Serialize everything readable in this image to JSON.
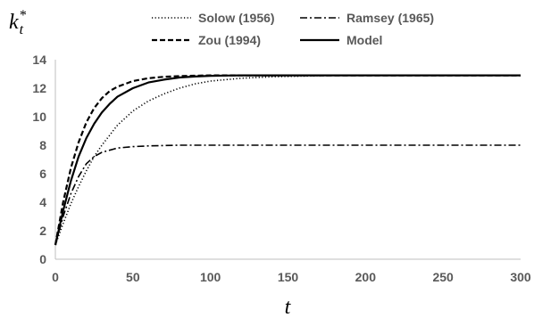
{
  "chart_data": {
    "type": "line",
    "ylabel": {
      "base": "k",
      "sub": "t",
      "sup": "*"
    },
    "xlabel": "t",
    "xlim": [
      0,
      300
    ],
    "ylim": [
      0,
      14
    ],
    "xticks": [
      0,
      50,
      100,
      150,
      200,
      250,
      300
    ],
    "yticks": [
      0,
      2,
      4,
      6,
      8,
      10,
      12,
      14
    ],
    "grid": false,
    "legend_position": "top",
    "series": [
      {
        "name": "Solow (1956)",
        "style": "dotted",
        "color": "#000000",
        "x": [
          0,
          5,
          10,
          15,
          20,
          25,
          30,
          40,
          50,
          60,
          70,
          80,
          90,
          100,
          120,
          140,
          160,
          180,
          200,
          250,
          300
        ],
        "y": [
          1.0,
          2.5,
          3.9,
          5.1,
          6.2,
          7.2,
          8.0,
          9.4,
          10.4,
          11.1,
          11.6,
          12.0,
          12.3,
          12.5,
          12.7,
          12.8,
          12.85,
          12.9,
          12.9,
          12.9,
          12.9
        ]
      },
      {
        "name": "Ramsey (1965)",
        "style": "dash-dot",
        "color": "#000000",
        "x": [
          0,
          5,
          10,
          15,
          20,
          25,
          30,
          40,
          50,
          60,
          80,
          100,
          150,
          200,
          250,
          300
        ],
        "y": [
          1.0,
          3.0,
          4.6,
          5.8,
          6.7,
          7.2,
          7.5,
          7.8,
          7.9,
          7.95,
          8.0,
          8.0,
          8.0,
          8.0,
          8.0,
          8.0
        ]
      },
      {
        "name": "Zou (1994)",
        "style": "dashed",
        "color": "#000000",
        "x": [
          0,
          5,
          10,
          15,
          20,
          25,
          30,
          35,
          40,
          50,
          60,
          70,
          80,
          100,
          120,
          150,
          200,
          250,
          300
        ],
        "y": [
          1.0,
          4.0,
          6.4,
          8.2,
          9.6,
          10.6,
          11.3,
          11.8,
          12.1,
          12.5,
          12.7,
          12.8,
          12.85,
          12.9,
          12.9,
          12.9,
          12.9,
          12.9,
          12.9
        ]
      },
      {
        "name": "Model",
        "style": "solid",
        "color": "#000000",
        "x": [
          0,
          5,
          10,
          15,
          20,
          25,
          30,
          35,
          40,
          50,
          60,
          70,
          80,
          90,
          100,
          120,
          150,
          200,
          250,
          300
        ],
        "y": [
          1.0,
          3.4,
          5.5,
          7.2,
          8.5,
          9.5,
          10.3,
          10.9,
          11.4,
          12.0,
          12.4,
          12.6,
          12.75,
          12.82,
          12.87,
          12.9,
          12.9,
          12.9,
          12.9,
          12.9
        ]
      }
    ]
  }
}
